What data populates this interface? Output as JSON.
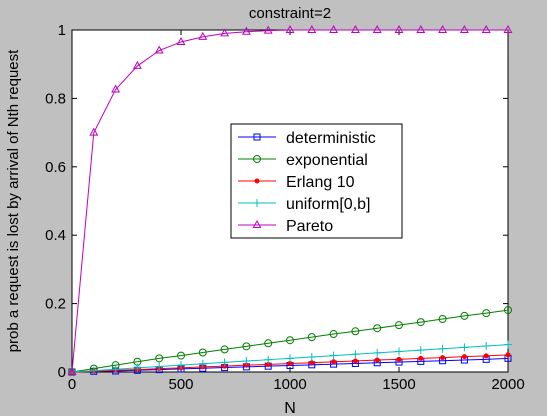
{
  "chart_data": {
    "type": "line",
    "title": "constraint=2",
    "xlabel": "N",
    "ylabel": "prob a request is lost by arrival of Nth request",
    "xlim": [
      0,
      2000
    ],
    "ylim": [
      0,
      1
    ],
    "xticks": [
      0,
      500,
      1000,
      1500,
      2000
    ],
    "yticks": [
      0,
      0.2,
      0.4,
      0.6,
      0.8,
      1
    ],
    "ytick_labels": [
      "0",
      "0.2",
      "0.4",
      "0.6",
      "0.8",
      "1"
    ],
    "legend_position": "center",
    "x": [
      0,
      100,
      200,
      300,
      400,
      500,
      600,
      700,
      800,
      900,
      1000,
      1100,
      1200,
      1300,
      1400,
      1500,
      1600,
      1700,
      1800,
      1900,
      2000
    ],
    "series": [
      {
        "name": "deterministic",
        "color": "#0000ff",
        "marker": "square",
        "values": [
          0,
          0.002,
          0.003,
          0.005,
          0.007,
          0.009,
          0.011,
          0.013,
          0.015,
          0.017,
          0.019,
          0.021,
          0.023,
          0.025,
          0.027,
          0.029,
          0.031,
          0.033,
          0.035,
          0.037,
          0.04
        ]
      },
      {
        "name": "exponential",
        "color": "#008000",
        "marker": "circle",
        "values": [
          0,
          0.01,
          0.02,
          0.03,
          0.04,
          0.048,
          0.057,
          0.066,
          0.075,
          0.084,
          0.093,
          0.102,
          0.111,
          0.119,
          0.128,
          0.137,
          0.146,
          0.155,
          0.164,
          0.172,
          0.181
        ]
      },
      {
        "name": "Erlang 10",
        "color": "#ff0000",
        "marker": "point",
        "values": [
          0,
          0.002,
          0.005,
          0.007,
          0.01,
          0.012,
          0.015,
          0.017,
          0.02,
          0.022,
          0.025,
          0.027,
          0.03,
          0.032,
          0.035,
          0.037,
          0.04,
          0.042,
          0.045,
          0.047,
          0.05
        ]
      },
      {
        "name": "uniform[0,b]",
        "color": "#00bfbf",
        "marker": "plus",
        "values": [
          0,
          0.004,
          0.008,
          0.012,
          0.016,
          0.02,
          0.024,
          0.028,
          0.032,
          0.036,
          0.04,
          0.044,
          0.048,
          0.052,
          0.056,
          0.06,
          0.064,
          0.068,
          0.072,
          0.076,
          0.08
        ]
      },
      {
        "name": "Pareto",
        "color": "#bf00bf",
        "marker": "triangle",
        "values": [
          0,
          0.7,
          0.826,
          0.895,
          0.94,
          0.965,
          0.98,
          0.99,
          0.995,
          0.998,
          1,
          1,
          1,
          1,
          1,
          1,
          1,
          1,
          1,
          1,
          1
        ]
      }
    ]
  }
}
